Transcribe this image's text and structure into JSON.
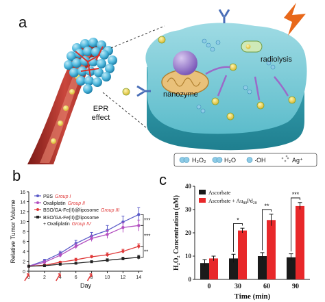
{
  "panels": {
    "a": "a",
    "b": "b",
    "c": "c"
  },
  "illustration": {
    "epr_line1": "EPR",
    "epr_line2": "effect",
    "nanozyme": "nanozyme",
    "radiolysis": "radiolysis",
    "legend": [
      {
        "icon": "h2o2-molecule-icon",
        "label": "H₂O₂"
      },
      {
        "icon": "h2o-molecule-icon",
        "label": "H₂O"
      },
      {
        "icon": "hydroxyl-radical-icon",
        "label": "·OH"
      },
      {
        "icon": "silver-ion-icon",
        "label": "Ag⁺"
      }
    ],
    "colors": {
      "vessel": "#b8322a",
      "cell": "#54b9c8",
      "nanoparticle": "#4fb8dd",
      "lightning": "#e8681a"
    }
  },
  "chart_data": [
    {
      "type": "line",
      "xlabel": "Day",
      "ylabel": "Relative Tumor Volume",
      "x": [
        0,
        2,
        4,
        6,
        8,
        10,
        12,
        14
      ],
      "xlim": [
        0,
        14.5
      ],
      "ylim": [
        0,
        16
      ],
      "xticks": [
        "0",
        "2",
        "4",
        "6",
        "8",
        "10",
        "12",
        "14"
      ],
      "yticks": [
        "0",
        "2",
        "4",
        "6",
        "8",
        "10",
        "12",
        "14",
        "16"
      ],
      "series": [
        {
          "name": "PBS",
          "group": "Group I",
          "color": "#5a5ac8",
          "marker": "circle",
          "values": [
            1,
            2.1,
            3.6,
            5.6,
            7.1,
            8.2,
            9.9,
            11.4
          ],
          "errors": [
            0.1,
            0.3,
            0.4,
            0.6,
            0.7,
            1.0,
            1.2,
            1.4
          ]
        },
        {
          "name": "Oxaliplatin",
          "group": "Group II",
          "color": "#b34fc0",
          "marker": "circle",
          "values": [
            1,
            1.8,
            3.2,
            5.0,
            6.6,
            7.4,
            8.8,
            9.2
          ],
          "errors": [
            0.1,
            0.3,
            0.4,
            0.5,
            0.6,
            0.8,
            1.0,
            1.1
          ]
        },
        {
          "name": "BSO/GA-Fe(II)@liposome",
          "group": "Group III",
          "color": "#e03a3a",
          "marker": "circle",
          "values": [
            1,
            1.2,
            1.8,
            2.3,
            2.9,
            3.3,
            4.0,
            5.0
          ],
          "errors": [
            0.1,
            0.2,
            0.2,
            0.3,
            0.3,
            0.4,
            0.4,
            0.5
          ]
        },
        {
          "name": "BSO/GA-Fe(II)@liposome + Oxaliplatin",
          "group": "Group IV",
          "color": "#222222",
          "marker": "square",
          "values": [
            1,
            1.1,
            1.4,
            1.6,
            1.9,
            2.2,
            2.5,
            2.8
          ],
          "errors": [
            0.1,
            0.1,
            0.2,
            0.2,
            0.2,
            0.3,
            0.3,
            0.4
          ]
        }
      ],
      "legend_entries": [
        {
          "text": "PBS",
          "group": "Group I"
        },
        {
          "text": "Oxaliplatin",
          "group": "Group II"
        },
        {
          "text": "BSO/GA-Fe(II)@liposome",
          "group": "Group III"
        },
        {
          "text": "BSO/GA-Fe(II)@liposome",
          "group": ""
        },
        {
          "text": "+ Oxaliplatin",
          "group": "Group IV"
        }
      ],
      "injection_days": [
        0,
        4,
        8
      ],
      "significance": [
        "***",
        "***",
        "**"
      ]
    },
    {
      "type": "bar",
      "xlabel": "Time (min)",
      "ylabel": "H₂O₂ Concentration (nM)",
      "categories": [
        "0",
        "30",
        "60",
        "90"
      ],
      "ylim": [
        0,
        40
      ],
      "yticks": [
        "0",
        "10",
        "20",
        "30",
        "40"
      ],
      "series": [
        {
          "name": "Ascorbate",
          "color": "#1a1a1a",
          "values": [
            7,
            9,
            10,
            9.5
          ],
          "errors": [
            1.5,
            1.8,
            1.5,
            1.5
          ]
        },
        {
          "name": "Ascorbate + Au80Pd20",
          "color": "#e8282a",
          "values": [
            9,
            21,
            25.5,
            31.5
          ],
          "errors": [
            1.0,
            1.0,
            2.5,
            1.5
          ]
        }
      ],
      "legend_labels": [
        "Ascorbate",
        "Ascorbate + Au",
        "80",
        "Pd",
        "20"
      ],
      "significance": [
        {
          "category": "30",
          "text": "*"
        },
        {
          "category": "60",
          "text": "**"
        },
        {
          "category": "90",
          "text": "***"
        }
      ]
    }
  ]
}
